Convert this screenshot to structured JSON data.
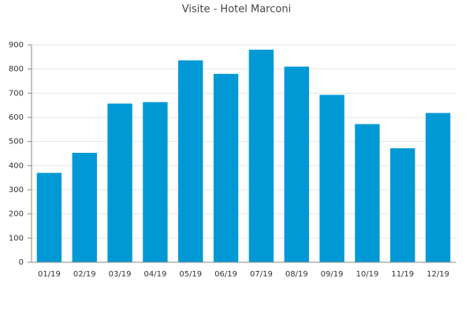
{
  "chart_data": {
    "type": "bar",
    "title": "Visite - Hotel Marconi",
    "categories": [
      "01/19",
      "02/19",
      "03/19",
      "04/19",
      "05/19",
      "06/19",
      "07/19",
      "08/19",
      "09/19",
      "10/19",
      "11/19",
      "12/19"
    ],
    "values": [
      370,
      453,
      657,
      663,
      836,
      780,
      880,
      810,
      693,
      572,
      472,
      618
    ],
    "color": "#0099d6",
    "ylim": [
      0,
      900
    ],
    "yticks": [
      0,
      100,
      200,
      300,
      400,
      500,
      600,
      700,
      800,
      900
    ],
    "grid": true
  }
}
